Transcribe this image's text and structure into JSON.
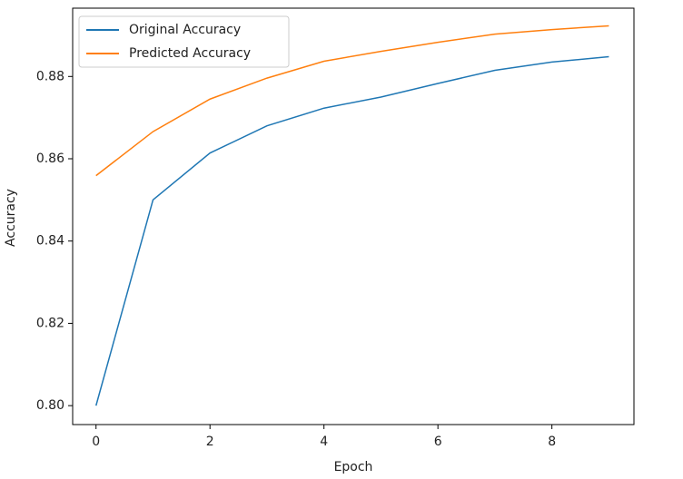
{
  "chart_data": {
    "type": "line",
    "x": [
      0,
      1,
      2,
      3,
      4,
      5,
      6,
      7,
      8,
      9
    ],
    "series": [
      {
        "name": "Original Accuracy",
        "color": "#1f77b4",
        "values": [
          0.8,
          0.85,
          0.8614,
          0.868,
          0.8723,
          0.875,
          0.8783,
          0.8815,
          0.8835,
          0.8848
        ]
      },
      {
        "name": "Predicted Accuracy",
        "color": "#ff7f0e",
        "values": [
          0.8559,
          0.8666,
          0.8745,
          0.8796,
          0.8837,
          0.8861,
          0.8883,
          0.8903,
          0.8914,
          0.8923
        ]
      }
    ],
    "xlabel": "Epoch",
    "ylabel": "Accuracy",
    "xlim": [
      -0.41,
      9.44
    ],
    "ylim": [
      0.7954,
      0.8966
    ],
    "xticks": [
      0,
      2,
      4,
      6,
      8
    ],
    "yticks": [
      {
        "value": 0.8,
        "label": "0.80"
      },
      0.82,
      0.84,
      0.86,
      0.88
    ],
    "legend": "upper-left",
    "grid": false
  }
}
